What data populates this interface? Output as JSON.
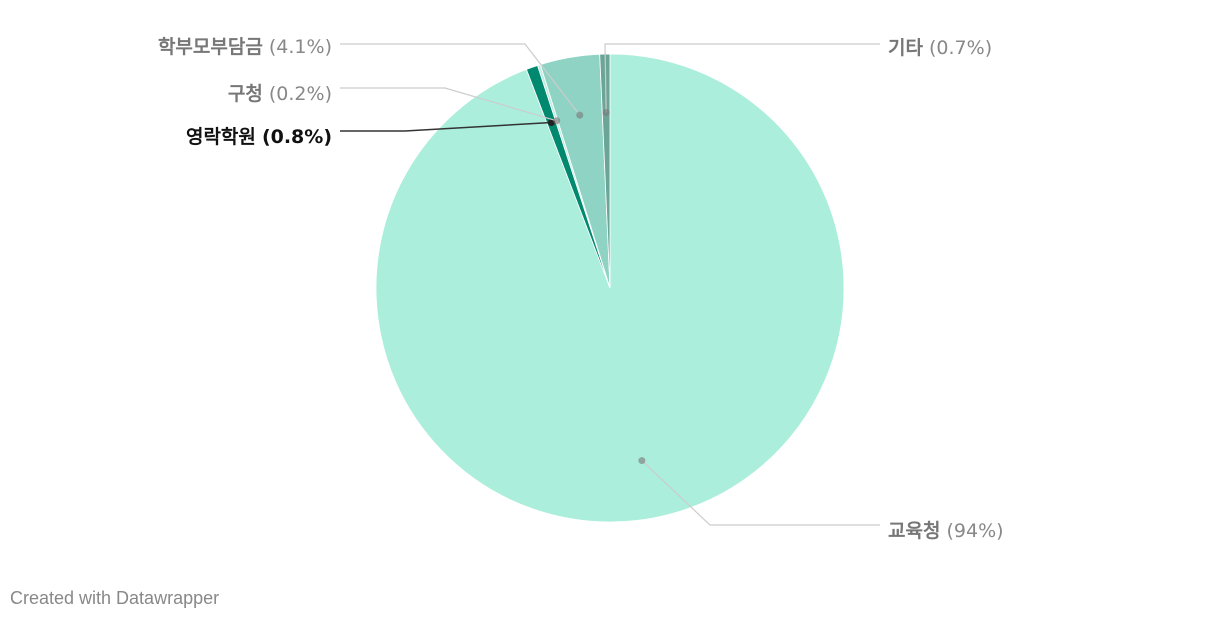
{
  "chart_data": {
    "type": "pie",
    "categories": [
      "교육청",
      "영락학원",
      "구청",
      "학부모부담금",
      "기타"
    ],
    "values": [
      94,
      0.8,
      0.2,
      4.1,
      0.7
    ],
    "value_labels": [
      "(94%)",
      "(0.8%)",
      "(0.2%)",
      "(4.1%)",
      "(0.7%)"
    ],
    "colors": [
      "#aaeedb",
      "#00896f",
      "#bfeee1",
      "#8ed3c3",
      "#6aa597"
    ],
    "highlight": 1,
    "footer": "Created with Datawrapper"
  }
}
